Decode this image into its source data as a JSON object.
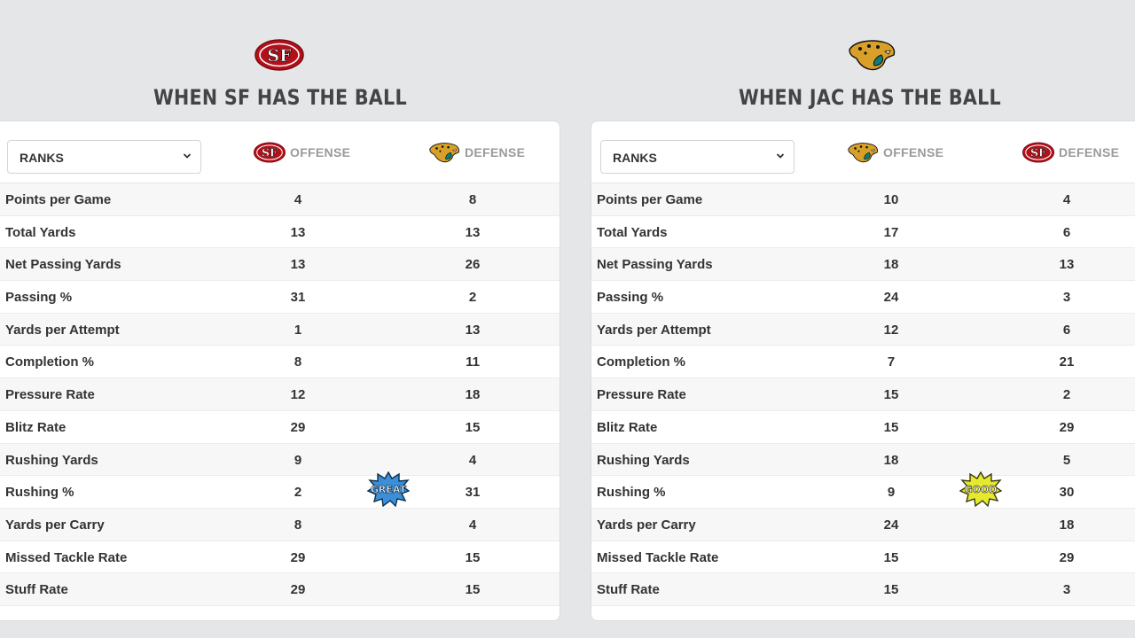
{
  "left_panel": {
    "team_logo": "sf-49ers-logo",
    "heading": "WHEN SF HAS THE BALL",
    "select_value": "RANKS",
    "offense_label": "OFFENSE",
    "defense_label": "DEFENSE",
    "offense_logo": "sf-49ers-logo",
    "defense_logo": "jaguars-logo",
    "badge": "GREAT",
    "badge_color": "#3a8fd8",
    "rows": [
      {
        "label": "Points per Game",
        "offense": "4",
        "defense": "8"
      },
      {
        "label": "Total Yards",
        "offense": "13",
        "defense": "13"
      },
      {
        "label": "Net Passing Yards",
        "offense": "13",
        "defense": "26"
      },
      {
        "label": "Passing %",
        "offense": "31",
        "defense": "2"
      },
      {
        "label": "Yards per Attempt",
        "offense": "1",
        "defense": "13"
      },
      {
        "label": "Completion %",
        "offense": "8",
        "defense": "11"
      },
      {
        "label": "Pressure Rate",
        "offense": "12",
        "defense": "18"
      },
      {
        "label": "Blitz Rate",
        "offense": "29",
        "defense": "15"
      },
      {
        "label": "Rushing Yards",
        "offense": "9",
        "defense": "4"
      },
      {
        "label": "Rushing %",
        "offense": "2",
        "defense": "31"
      },
      {
        "label": "Yards per Carry",
        "offense": "8",
        "defense": "4"
      },
      {
        "label": "Missed Tackle Rate",
        "offense": "29",
        "defense": "15"
      },
      {
        "label": "Stuff Rate",
        "offense": "29",
        "defense": "15"
      }
    ]
  },
  "right_panel": {
    "team_logo": "jaguars-logo",
    "heading": "WHEN JAC HAS THE BALL",
    "select_value": "RANKS",
    "offense_label": "OFFENSE",
    "defense_label": "DEFENSE",
    "offense_logo": "jaguars-logo",
    "defense_logo": "sf-49ers-logo",
    "badge": "GOOD",
    "badge_color": "#e6ea2e",
    "rows": [
      {
        "label": "Points per Game",
        "offense": "10",
        "defense": "4"
      },
      {
        "label": "Total Yards",
        "offense": "17",
        "defense": "6"
      },
      {
        "label": "Net Passing Yards",
        "offense": "18",
        "defense": "13"
      },
      {
        "label": "Passing %",
        "offense": "24",
        "defense": "3"
      },
      {
        "label": "Yards per Attempt",
        "offense": "12",
        "defense": "6"
      },
      {
        "label": "Completion %",
        "offense": "7",
        "defense": "21"
      },
      {
        "label": "Pressure Rate",
        "offense": "15",
        "defense": "2"
      },
      {
        "label": "Blitz Rate",
        "offense": "15",
        "defense": "29"
      },
      {
        "label": "Rushing Yards",
        "offense": "18",
        "defense": "5"
      },
      {
        "label": "Rushing %",
        "offense": "9",
        "defense": "30"
      },
      {
        "label": "Yards per Carry",
        "offense": "24",
        "defense": "18"
      },
      {
        "label": "Missed Tackle Rate",
        "offense": "15",
        "defense": "29"
      },
      {
        "label": "Stuff Rate",
        "offense": "15",
        "defense": "3"
      }
    ]
  },
  "colors": {
    "sf_red": "#b3101a",
    "jaguars_teal": "#0b7d7a",
    "jaguars_gold": "#d8a028",
    "background": "#e5e6e8"
  }
}
